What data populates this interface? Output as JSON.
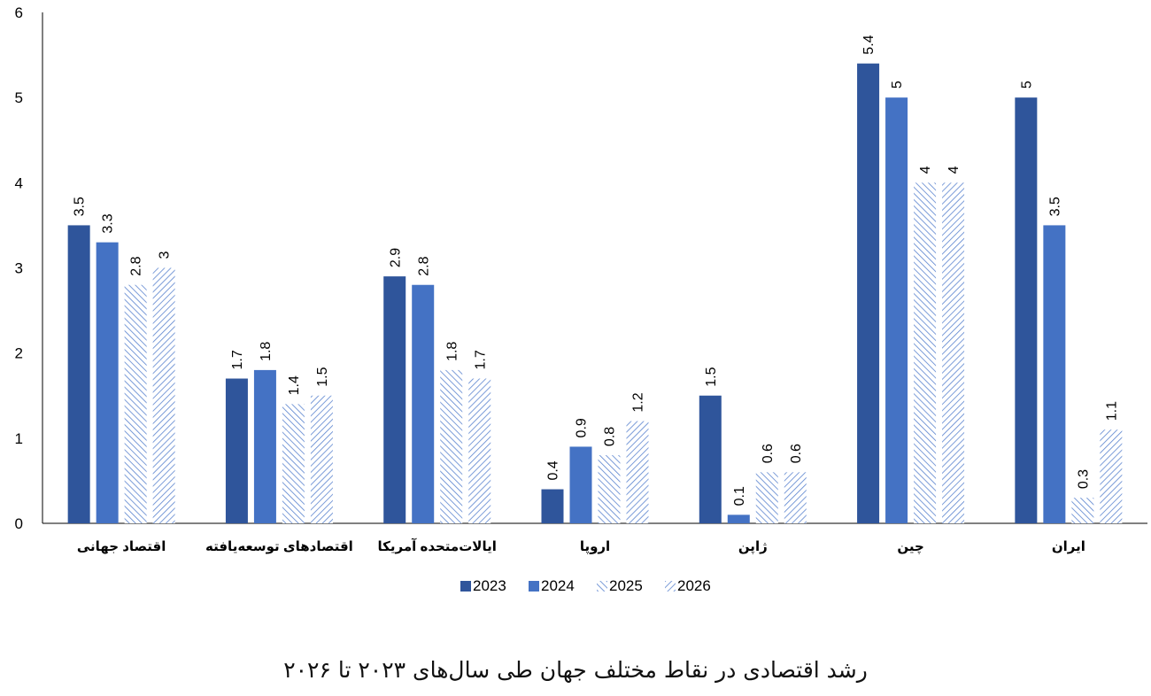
{
  "caption": "رشد اقتصادی در نقاط مختلف جهان طی سال‌های ۲۰۲۳ تا ۲۰۲۶",
  "chart_data": {
    "type": "bar",
    "title": "",
    "xlabel": "",
    "ylabel": "",
    "ylim": [
      0,
      6
    ],
    "yticks": [
      0,
      1,
      2,
      3,
      4,
      5,
      6
    ],
    "grid": false,
    "legend_position": "bottom",
    "categories": [
      "اقتصاد جهانی",
      "اقتصادهای توسعه‌یافته",
      "ایالات‌متحده آمریکا",
      "اروپا",
      "ژاپن",
      "چین",
      "ایران"
    ],
    "series": [
      {
        "name": "2023",
        "values": [
          3.5,
          1.7,
          2.9,
          0.4,
          1.5,
          5.4,
          5
        ],
        "color": "#2f559b",
        "pattern": "solid"
      },
      {
        "name": "2024",
        "values": [
          3.3,
          1.8,
          2.8,
          0.9,
          0.1,
          5,
          3.5
        ],
        "color": "#4472c4",
        "pattern": "solid"
      },
      {
        "name": "2025",
        "values": [
          2.8,
          1.4,
          1.8,
          0.8,
          0.6,
          4,
          0.3
        ],
        "color": "#6e93d6",
        "pattern": "hatch"
      },
      {
        "name": "2026",
        "values": [
          3,
          1.5,
          1.7,
          1.2,
          0.6,
          4,
          1.1
        ],
        "color": "#6e93d6",
        "pattern": "hatch"
      }
    ]
  }
}
